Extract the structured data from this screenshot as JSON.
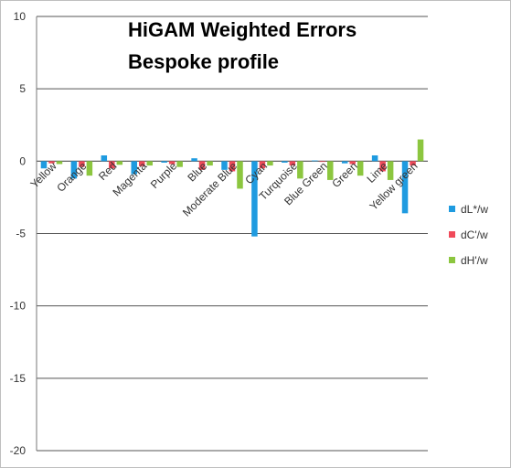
{
  "chart_data": {
    "type": "bar",
    "title": "HiGAM Weighted Errors",
    "subtitle": "Bespoke profile",
    "xlabel": "",
    "ylabel": "",
    "ylim": [
      -20,
      10
    ],
    "yticks": [
      10,
      5,
      0,
      -5,
      -10,
      -15,
      -20
    ],
    "grid": true,
    "legend": "right",
    "categories": [
      "Yellow",
      "Orange",
      "Red",
      "Magenta",
      "Purple",
      "Blue",
      "Moderate Blue",
      "Cyan",
      "Turquoise",
      "Blue Green",
      "Green",
      "Lime",
      "Yellow green"
    ],
    "series": [
      {
        "name": "dL*/w",
        "color": "#1f9be0",
        "values": [
          -0.5,
          -1.2,
          0.4,
          -0.9,
          -0.1,
          0.2,
          -0.6,
          -5.2,
          -0.1,
          0.05,
          -0.15,
          0.4,
          -3.6
        ]
      },
      {
        "name": "dC'/w",
        "color": "#f04a5a",
        "values": [
          -0.15,
          -0.4,
          -0.5,
          -0.35,
          -0.2,
          -0.6,
          -0.7,
          -0.5,
          -0.3,
          -0.05,
          -0.2,
          -0.7,
          -0.3
        ]
      },
      {
        "name": "dH'/w",
        "color": "#8cc63f",
        "values": [
          -0.2,
          -1.0,
          -0.25,
          -0.3,
          -0.4,
          -0.3,
          -1.9,
          -0.3,
          -1.2,
          -1.3,
          -1.0,
          -1.3,
          1.5
        ]
      }
    ]
  }
}
